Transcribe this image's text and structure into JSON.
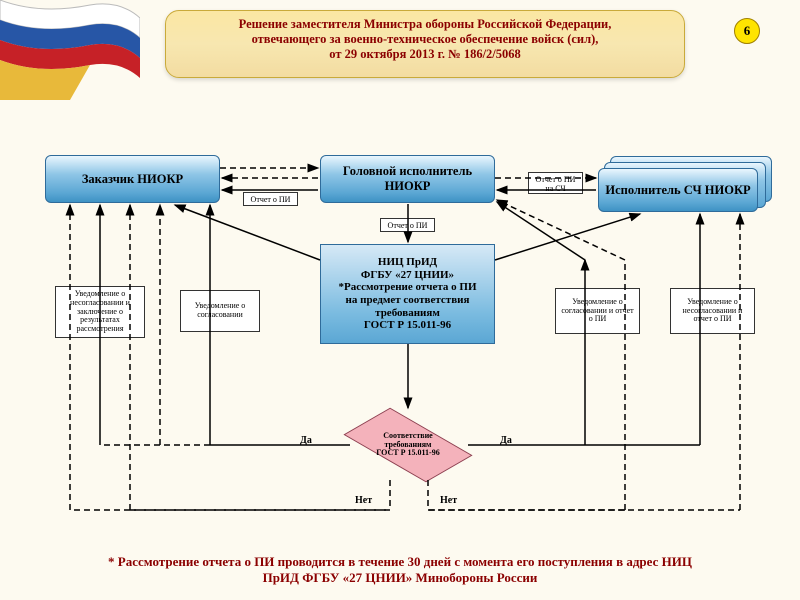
{
  "page_number": "6",
  "header": {
    "l1": "Решение заместителя Министра обороны Российской Федерации,",
    "l2": "отвечающего за военно-техническое обеспечение войск (сил),",
    "l3": "от 29 октября 2013 г. № 186/2/5068"
  },
  "boxes": {
    "zakazchik": "Заказчик НИОКР",
    "golovnoi": "Головной исполнитель НИОКР",
    "ispolnitel": "Исполнитель СЧ НИОКР",
    "center": "НИЦ ПрИД<br>ФГБУ «27 ЦНИИ»<br>*Рассмотрение отчета о ПИ<br>на предмет соответствия<br>требованиям<br>ГОСТ Р 15.011-96",
    "diamond": "Соответствие<br>требованиям<br>ГОСТ Р 15.011-96"
  },
  "notes": {
    "n1": "Уведомление о<br>несогласовании и<br>заключение о результатах<br>рассмотрения",
    "n2": "Уведомление о<br>согласовании",
    "n3": "Уведомление о<br>согласовании и отчет<br>о ПИ",
    "n4": "Уведомление о<br>несогласовании и<br>отчет о ПИ",
    "s1": "Отчет о ПИ",
    "s2": "Отчет о ПИ",
    "s3": "Отчет о ПИ<br>на СЧ"
  },
  "labels": {
    "da": "Да",
    "net": "Нет"
  },
  "footer": "* Рассмотрение отчета о ПИ проводится в течение 30 дней с момента его поступления в адрес НИЦ ПрИД ФГБУ «27 ЦНИИ» Минобороны России",
  "colors": {
    "bg": "#fdfaf0",
    "hdr_red": "#8b0000",
    "blue_top": "#eaf6fe",
    "blue_bot": "#4a9acc",
    "diamond": "#f4b2bb"
  }
}
